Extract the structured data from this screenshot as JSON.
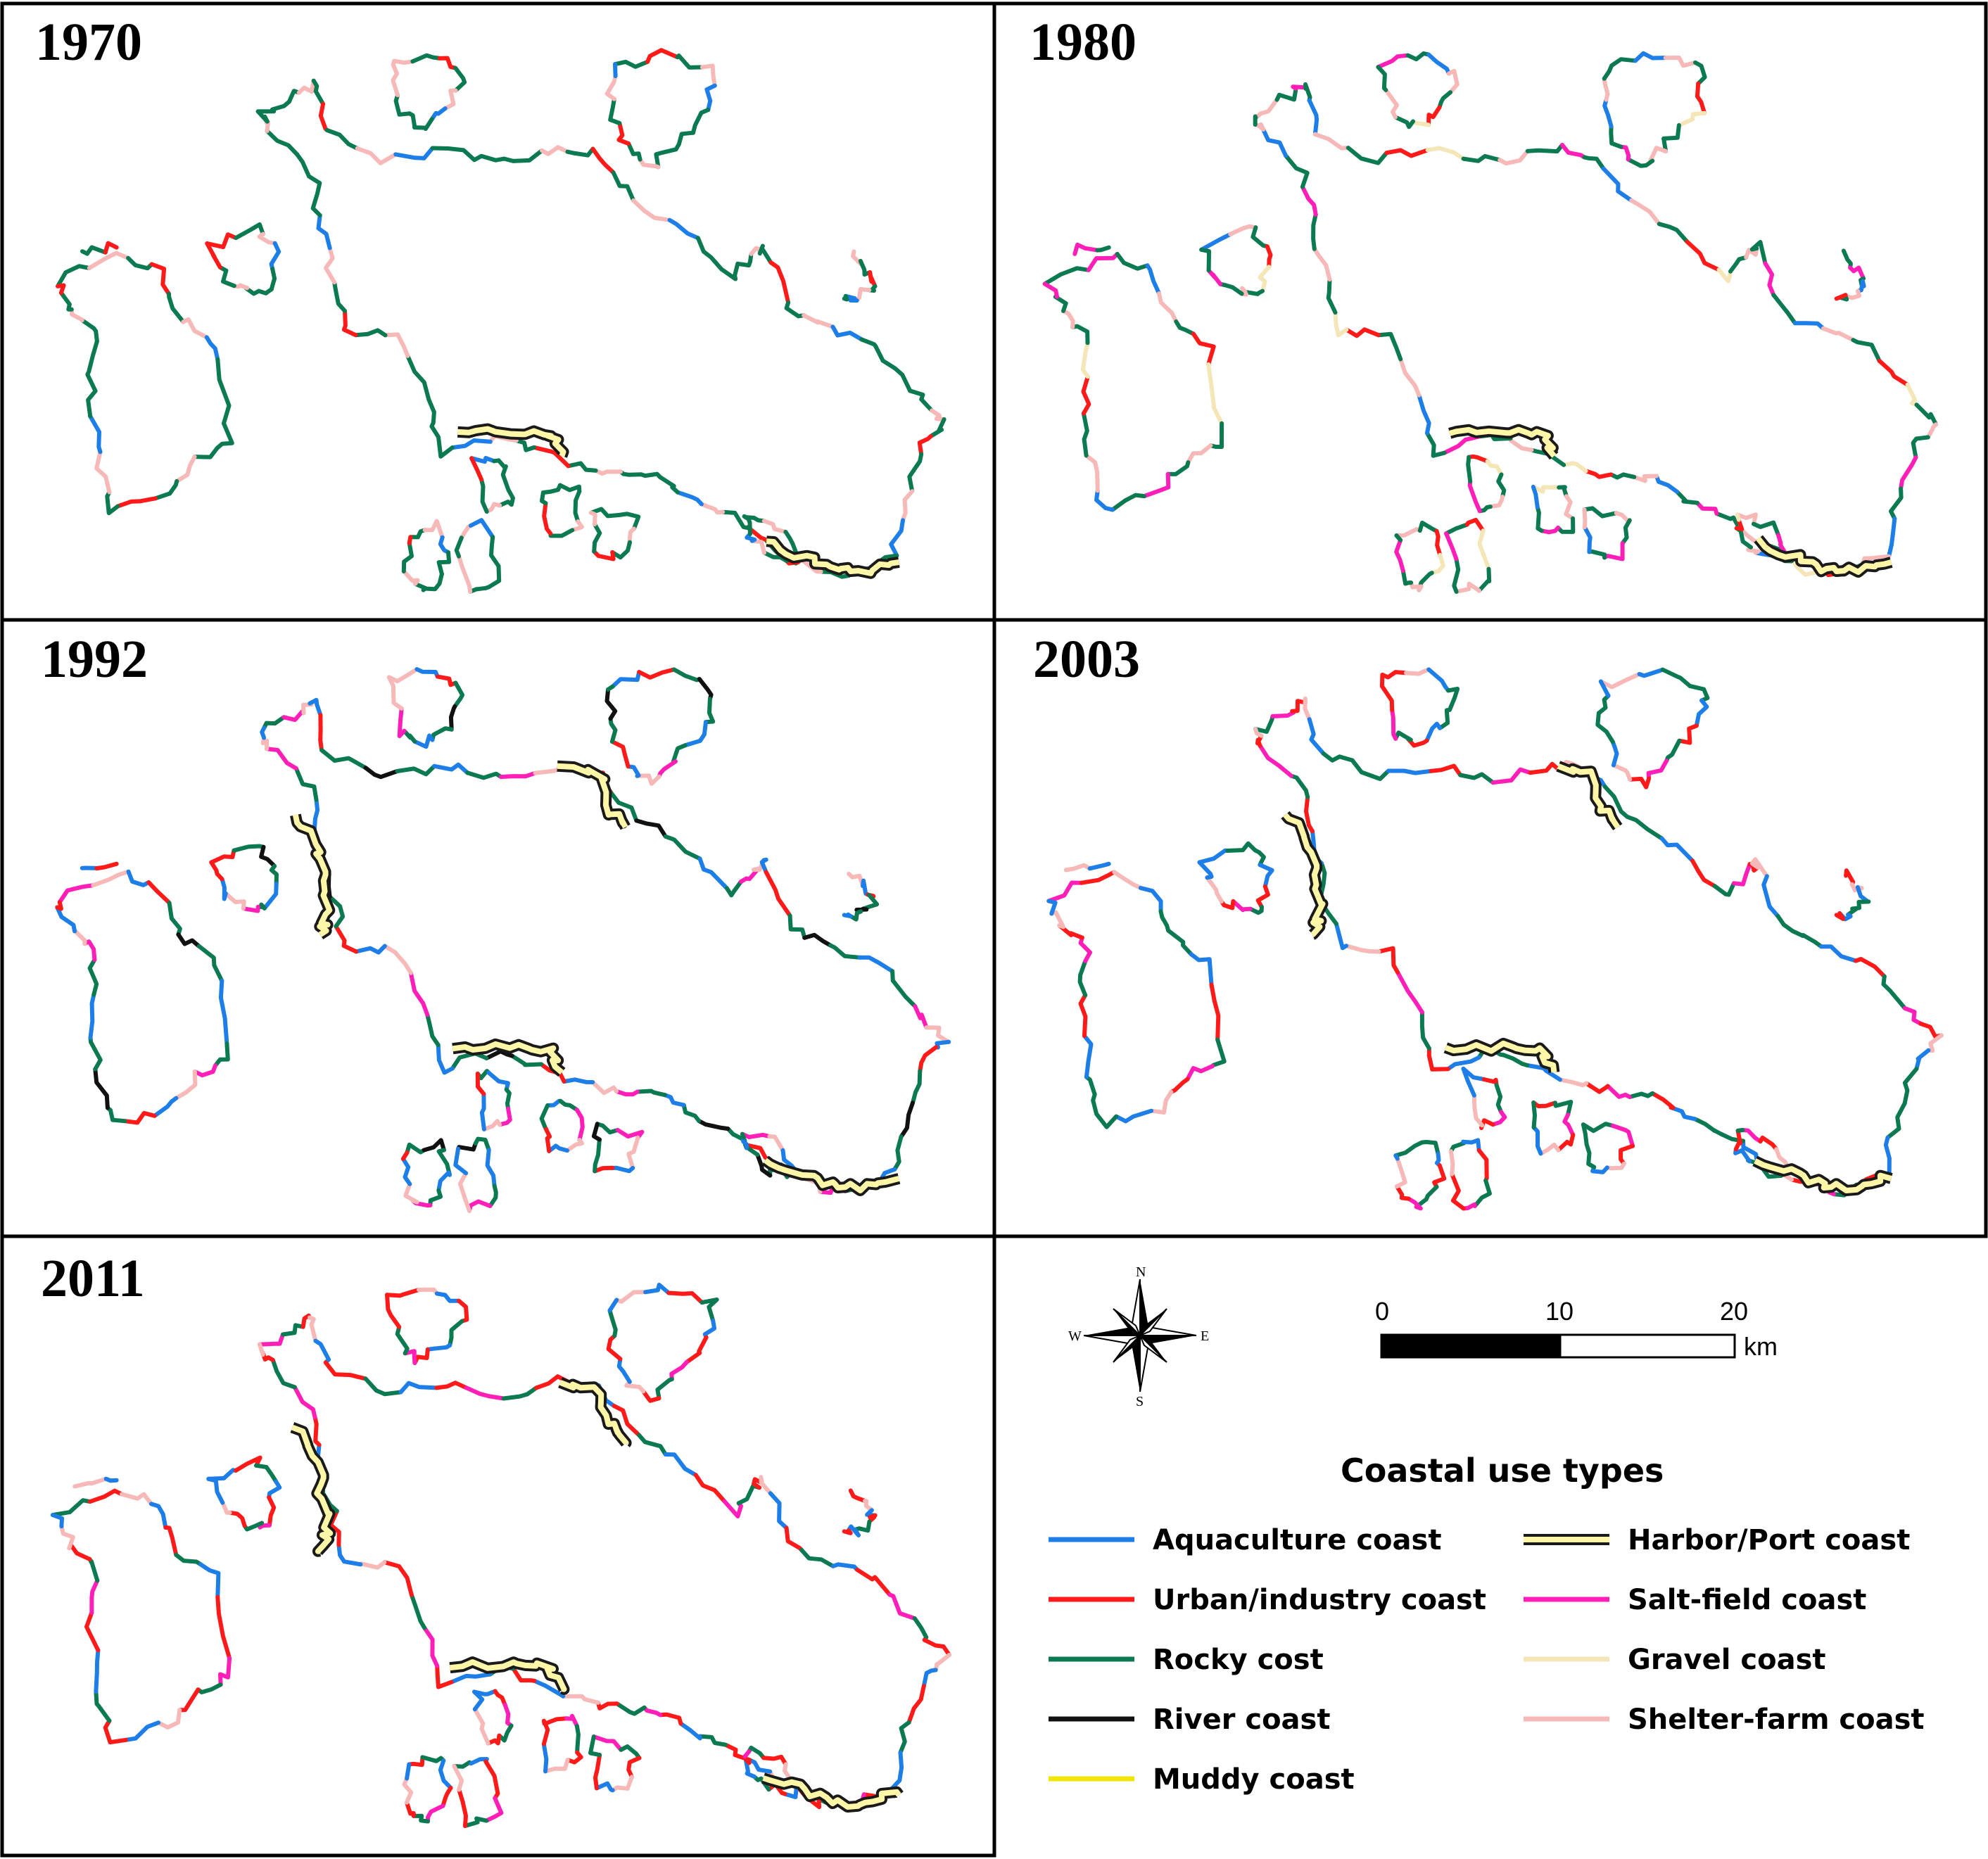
{
  "panels": [
    {
      "year": "1970",
      "variant": 0
    },
    {
      "year": "1980",
      "variant": 1
    },
    {
      "year": "1992",
      "variant": 2
    },
    {
      "year": "2003",
      "variant": 3
    },
    {
      "year": "2011",
      "variant": 4
    }
  ],
  "colors": {
    "aquaculture": "#1e7ee8",
    "urban": "#ff1a1a",
    "rocky": "#0b7a50",
    "river": "#111111",
    "muddy": "#f2e600",
    "harbor": "#fff6a8",
    "harbor_border": "#1a1a1a",
    "salt": "#ff1fb8",
    "gravel": "#f5e6b8",
    "shelter": "#f7b8b8"
  },
  "compass": {
    "n": "N",
    "s": "S",
    "e": "E",
    "w": "W"
  },
  "scale": {
    "ticks": [
      "0",
      "10",
      "20"
    ],
    "unit": "km"
  },
  "legend": {
    "title": "Coastal use types",
    "items": [
      {
        "key": "aquaculture",
        "label": "Aquaculture coast"
      },
      {
        "key": "harbor",
        "label": "Harbor/Port coast"
      },
      {
        "key": "urban",
        "label": "Urban/industry coast"
      },
      {
        "key": "salt",
        "label": "Salt-field coast"
      },
      {
        "key": "rocky",
        "label": "Rocky cost"
      },
      {
        "key": "gravel",
        "label": "Gravel coast"
      },
      {
        "key": "river",
        "label": "River coast"
      },
      {
        "key": "shelter",
        "label": "Shelter-farm coast"
      },
      {
        "key": "muddy",
        "label": "Muddy coast"
      }
    ]
  }
}
